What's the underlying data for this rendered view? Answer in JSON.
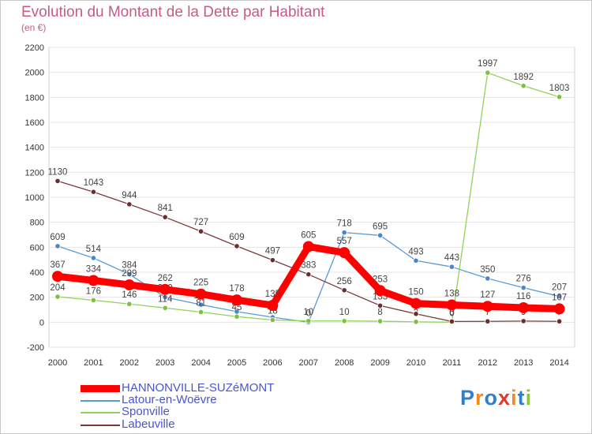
{
  "title": "Evolution du Montant de la Dette par Habitant",
  "subtitle": "(en €)",
  "logo": "Proxiti",
  "chart_data": {
    "type": "line",
    "x": [
      "2000",
      "2001",
      "2002",
      "2003",
      "2004",
      "2005",
      "2006",
      "2007",
      "2008",
      "2009",
      "2010",
      "2011",
      "2012",
      "2013",
      "2014"
    ],
    "y_ticks": [
      "-200",
      "0",
      "200",
      "400",
      "600",
      "800",
      "1000",
      "1200",
      "1400",
      "1600",
      "1800",
      "2000",
      "2200"
    ],
    "ylim": [
      -200,
      2200
    ],
    "grid": "horizontal",
    "legend_placement": "bottom-left",
    "series": [
      {
        "name": "Latour-en-Woëvre",
        "color": "#5b9bd5",
        "point_color": "#4a86c8",
        "values": [
          609,
          514,
          384,
          200,
          140,
          85,
          40,
          0,
          718,
          695,
          493,
          443,
          350,
          276,
          207
        ],
        "labels": [
          "609",
          "514",
          "384",
          "200",
          "140",
          "85",
          "40",
          "0",
          "718",
          "695",
          "493",
          "443",
          "350",
          "276",
          "207"
        ]
      },
      {
        "name": "Sponville",
        "color": "#8ed35a",
        "point_color": "#7cc142",
        "values": [
          204,
          176,
          146,
          114,
          81,
          45,
          18,
          10,
          10,
          8,
          3,
          0,
          1997,
          1892,
          1803
        ],
        "labels": [
          "204",
          "176",
          "146",
          "114",
          "81",
          "45",
          "18",
          "10",
          "10",
          "8",
          "3",
          "0",
          "1997",
          "1892",
          "1803"
        ]
      },
      {
        "name": "Labeuville",
        "color": "#7a3a3a",
        "point_color": "#6b2d2d",
        "values": [
          1130,
          1043,
          944,
          841,
          727,
          609,
          497,
          383,
          256,
          133,
          67,
          6,
          7,
          9,
          7
        ],
        "labels": [
          "1130",
          "1043",
          "944",
          "841",
          "727",
          "609",
          "497",
          "383",
          "256",
          "133",
          "67",
          "6",
          "7",
          "9",
          "7"
        ]
      },
      {
        "name": "HANNONVILLE-SUZéMONT",
        "color": "#ff0000",
        "point_color": "#ff0000",
        "thick": true,
        "values": [
          367,
          334,
          299,
          262,
          225,
          178,
          135,
          605,
          557,
          253,
          150,
          138,
          127,
          116,
          107
        ],
        "labels": [
          "367",
          "334",
          "299",
          "262",
          "225",
          "178",
          "135",
          "605",
          "557",
          "253",
          "150",
          "138",
          "127",
          "116",
          "107"
        ]
      }
    ]
  },
  "legend": [
    {
      "label": "HANNONVILLE-SUZéMONT",
      "color": "#ff0000",
      "thick": true
    },
    {
      "label": "Latour-en-Woëvre",
      "color": "#5b9bd5",
      "thick": false
    },
    {
      "label": "Sponville",
      "color": "#8ed35a",
      "thick": false
    },
    {
      "label": "Labeuville",
      "color": "#7a3a3a",
      "thick": false
    }
  ]
}
